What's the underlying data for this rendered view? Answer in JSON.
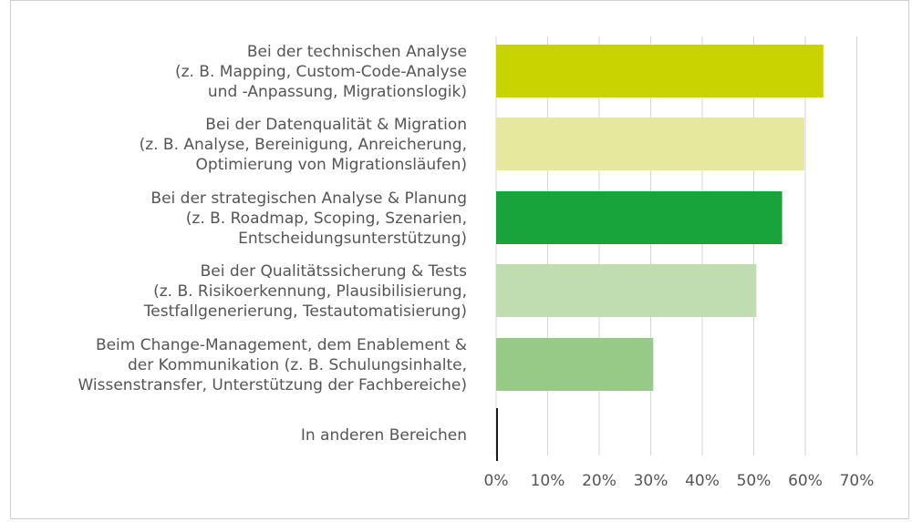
{
  "chart_data": {
    "type": "bar",
    "orientation": "horizontal",
    "categories": [
      [
        "Bei der technischen Analyse",
        "(z. B. Mapping, Custom-Code-Analyse",
        "und -Anpassung, Migrationslogik)"
      ],
      [
        "Bei der Datenqualität & Migration",
        "(z. B. Analyse, Bereinigung, Anreicherung,",
        "Optimierung von Migrationsläufen)"
      ],
      [
        "Bei der strategischen Analyse & Planung",
        "(z. B. Roadmap, Scoping, Szenarien,",
        "Entscheidungsunterstützung)"
      ],
      [
        "Bei der Qualitätssicherung & Tests",
        "(z. B. Risikoerkennung, Plausibilisierung,",
        "Testfallgenerierung, Testautomatisierung)"
      ],
      [
        "Beim Change-Management, dem Enablement &",
        "der Kommunikation (z. B. Schulungsinhalte,",
        "Wissenstransfer, Unterstützung der Fachbereiche)"
      ],
      [
        "In anderen Bereichen"
      ]
    ],
    "values": [
      63.5,
      59.8,
      55.5,
      50.5,
      30.5,
      0.3
    ],
    "colors": [
      "#c9d300",
      "#e6e89e",
      "#18a43a",
      "#c0ddb2",
      "#97c987",
      "#1a1a1a"
    ],
    "xlim": [
      0,
      70
    ],
    "xticks": [
      0,
      10,
      20,
      30,
      40,
      50,
      60,
      70
    ],
    "xtick_labels": [
      "0%",
      "10%",
      "20%",
      "30%",
      "40%",
      "50%",
      "60%",
      "70%"
    ],
    "grid": "vertical",
    "legend": "none",
    "title": "",
    "xlabel": "",
    "ylabel": ""
  }
}
